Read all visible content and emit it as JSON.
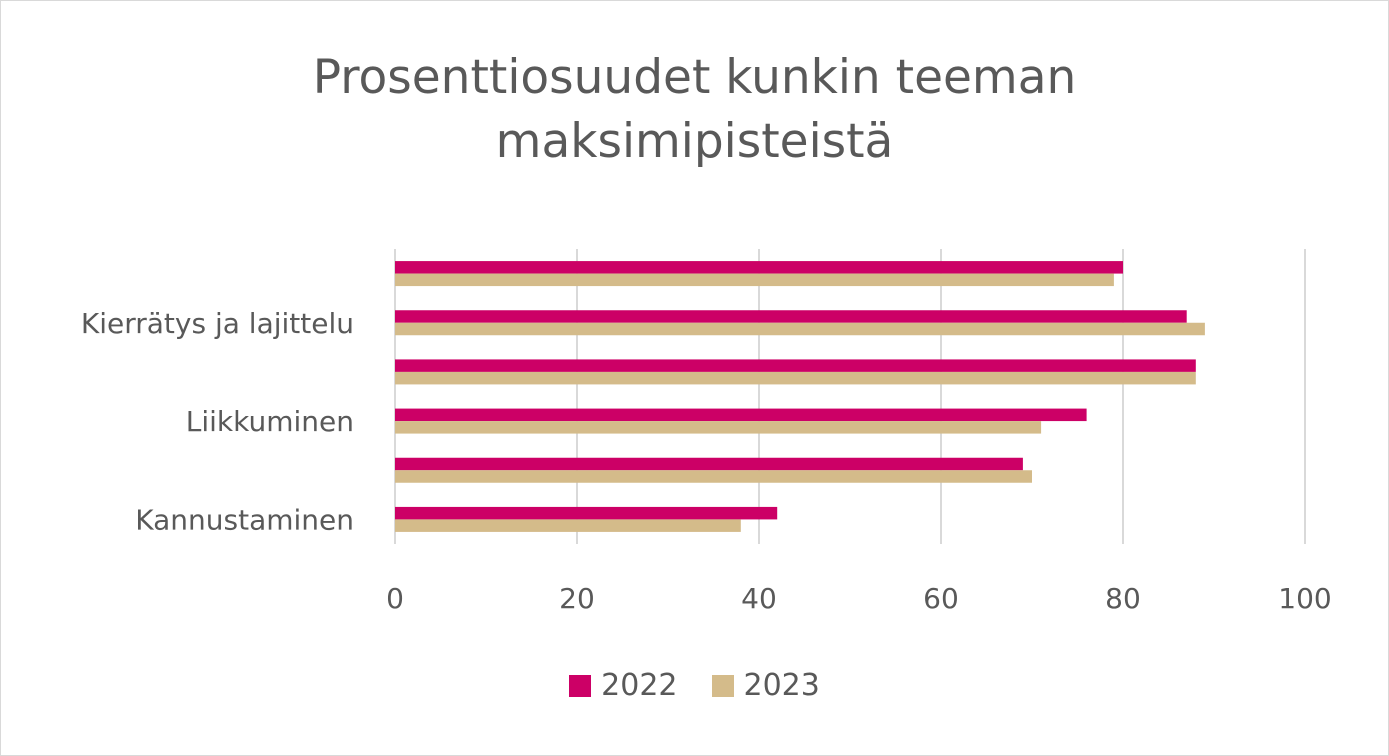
{
  "chart_data": {
    "type": "bar",
    "orientation": "horizontal",
    "title": "Prosenttiosuudet kunkin teeman maksimipisteistä",
    "title_lines": [
      "Prosenttiosuudet kunkin teeman",
      "maksimipisteistä"
    ],
    "categories": [
      "",
      "Kierrätys ja lajittelu",
      "",
      "Liikkuminen",
      "",
      "Kannustaminen"
    ],
    "series": [
      {
        "name": "2022",
        "color": "#CC0066",
        "values": [
          80,
          87,
          88,
          76,
          69,
          42
        ]
      },
      {
        "name": "2023",
        "color": "#D4BB8A",
        "values": [
          79,
          89,
          88,
          71,
          70,
          38
        ]
      }
    ],
    "xlim": [
      0,
      100
    ],
    "xticks": [
      0,
      20,
      40,
      60,
      80,
      100
    ],
    "xlabel": "",
    "ylabel": "",
    "grid": true,
    "legend_position": "bottom"
  }
}
